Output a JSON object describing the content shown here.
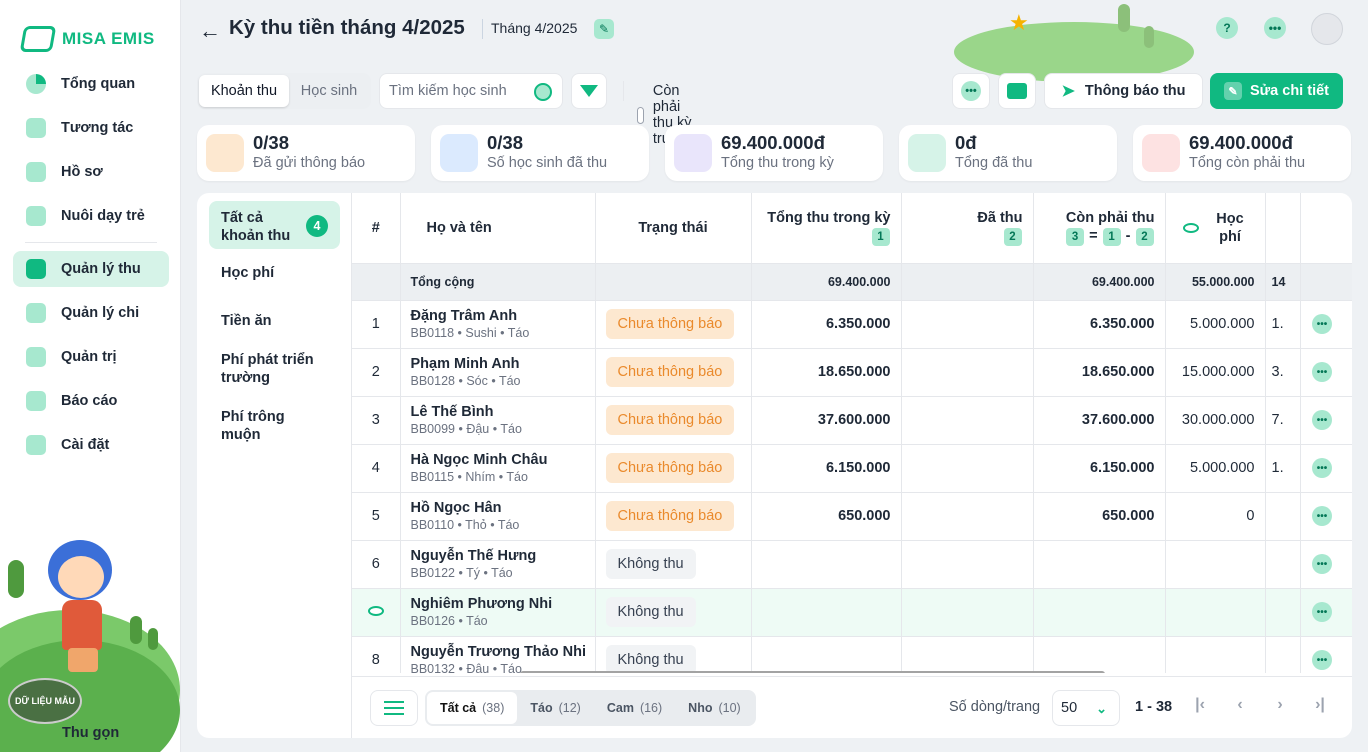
{
  "app": {
    "name": "MISA EMIS"
  },
  "sidebar": {
    "items": [
      {
        "label": "Tổng quan"
      },
      {
        "label": "Tương tác"
      },
      {
        "label": "Hồ sơ"
      },
      {
        "label": "Nuôi dạy trẻ"
      },
      {
        "label": "Quản lý thu"
      },
      {
        "label": "Quản lý chi"
      },
      {
        "label": "Quản trị"
      },
      {
        "label": "Báo cáo"
      },
      {
        "label": "Cài đặt"
      }
    ],
    "active": "Quản lý thu",
    "stamp": "DỮ LIỆU MẪU",
    "collapse": "Thu gọn"
  },
  "header": {
    "title": "Kỳ thu tiền tháng 4/2025",
    "period": "Tháng 4/2025"
  },
  "toolbar": {
    "tabs": [
      "Khoản thu",
      "Học sinh"
    ],
    "active_tab": "Khoản thu",
    "search_placeholder": "Tìm kiếm học sinh",
    "checkbox_label": "Còn phải thu kỳ trước",
    "notify_label": "Thông báo thu",
    "edit_label": "Sửa chi tiết"
  },
  "cards": [
    {
      "value": "0/38",
      "label": "Đã gửi thông báo",
      "color": "#fde8d0"
    },
    {
      "value": "0/38",
      "label": "Số học sinh đã thu",
      "color": "#dbeafe"
    },
    {
      "value": "69.400.000đ",
      "label": "Tổng thu trong kỳ",
      "color": "#e9e5fb"
    },
    {
      "value": "0đ",
      "label": "Tổng đã thu",
      "color": "#d6f3e8"
    },
    {
      "value": "69.400.000đ",
      "label": "Tổng còn phải thu",
      "color": "#fde2e2"
    }
  ],
  "categories": [
    {
      "label": "Tất cả khoản thu",
      "badge": "4"
    },
    {
      "label": "Học phí"
    },
    {
      "label": "Tiền ăn"
    },
    {
      "label": "Phí phát triển trường"
    },
    {
      "label": "Phí trông muộn"
    }
  ],
  "table": {
    "headers": {
      "idx": "#",
      "name": "Họ và tên",
      "status": "Trạng thái",
      "total": "Tổng thu trong kỳ",
      "total_tag": "1",
      "paid": "Đã thu",
      "paid_tag": "2",
      "remaining": "Còn phải thu",
      "remaining_formula": [
        "3",
        "=",
        "1",
        "-",
        "2"
      ],
      "tuition": "Học phí"
    },
    "totals": {
      "label": "Tổng cộng",
      "total": "69.400.000",
      "remaining": "69.400.000",
      "tuition": "55.000.000",
      "extra": "14"
    },
    "rows": [
      {
        "idx": "1",
        "name": "Đặng Trâm Anh",
        "code": "BB0118",
        "tags": [
          "Sushi",
          "Táo"
        ],
        "status": "Chưa thông báo",
        "status_type": "warn",
        "total": "6.350.000",
        "paid": "",
        "remaining": "6.350.000",
        "tuition": "5.000.000",
        "extra": "1."
      },
      {
        "idx": "2",
        "name": "Phạm Minh Anh",
        "code": "BB0128",
        "tags": [
          "Sóc",
          "Táo"
        ],
        "status": "Chưa thông báo",
        "status_type": "warn",
        "total": "18.650.000",
        "paid": "",
        "remaining": "18.650.000",
        "tuition": "15.000.000",
        "extra": "3."
      },
      {
        "idx": "3",
        "name": "Lê Thế Bình",
        "code": "BB0099",
        "tags": [
          "Đậu",
          "Táo"
        ],
        "status": "Chưa thông báo",
        "status_type": "warn",
        "total": "37.600.000",
        "paid": "",
        "remaining": "37.600.000",
        "tuition": "30.000.000",
        "extra": "7."
      },
      {
        "idx": "4",
        "name": "Hà Ngọc Minh Châu",
        "code": "BB0115",
        "tags": [
          "Nhím",
          "Táo"
        ],
        "status": "Chưa thông báo",
        "status_type": "warn",
        "total": "6.150.000",
        "paid": "",
        "remaining": "6.150.000",
        "tuition": "5.000.000",
        "extra": "1."
      },
      {
        "idx": "5",
        "name": "Hồ Ngọc Hân",
        "code": "BB0110",
        "tags": [
          "Thỏ",
          "Táo"
        ],
        "status": "Chưa thông báo",
        "status_type": "warn",
        "total": "650.000",
        "paid": "",
        "remaining": "650.000",
        "tuition": "0",
        "extra": ""
      },
      {
        "idx": "6",
        "name": "Nguyễn Thế Hưng",
        "code": "BB0122",
        "tags": [
          "Tý",
          "Táo"
        ],
        "status": "Không thu",
        "status_type": "none",
        "total": "",
        "paid": "",
        "remaining": "",
        "tuition": "",
        "extra": ""
      },
      {
        "idx": "",
        "name": "Nghiêm Phương Nhi",
        "code": "BB0126",
        "tags": [
          "Táo"
        ],
        "status": "Không thu",
        "status_type": "none",
        "total": "",
        "paid": "",
        "remaining": "",
        "tuition": "",
        "extra": "",
        "highlight": true
      },
      {
        "idx": "8",
        "name": "Nguyễn Trương Thảo Nhi",
        "code": "BB0132",
        "tags": [
          "Đậu",
          "Táo"
        ],
        "status": "Không thu",
        "status_type": "none",
        "total": "",
        "paid": "",
        "remaining": "",
        "tuition": "",
        "extra": ""
      }
    ]
  },
  "footer": {
    "groups": [
      {
        "label": "Tất cả",
        "count": "(38)"
      },
      {
        "label": "Táo",
        "count": "(12)"
      },
      {
        "label": "Cam",
        "count": "(16)"
      },
      {
        "label": "Nho",
        "count": "(10)"
      }
    ],
    "rows_label": "Số dòng/trang",
    "rows_value": "50",
    "range": "1 - 38"
  },
  "colors": {
    "accent": "#10b981",
    "accent_light": "#a7e8cf",
    "warn_bg": "#fde8d0",
    "warn_text": "#ea8a2c"
  }
}
